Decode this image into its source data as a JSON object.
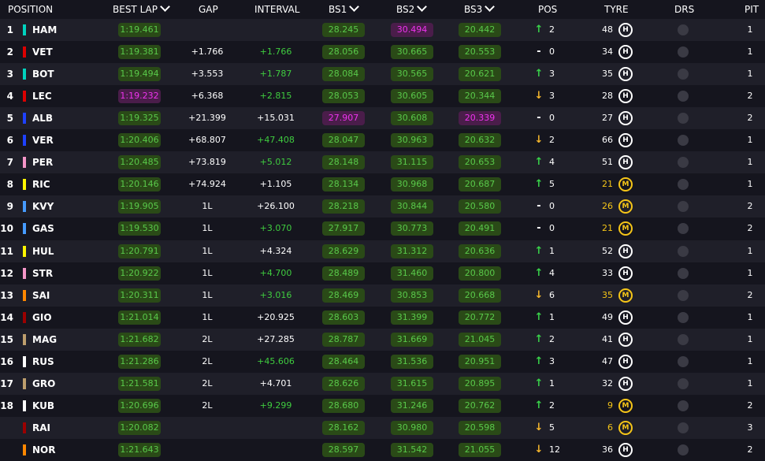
{
  "header": {
    "position": "POSITION",
    "best_lap": "BEST LAP",
    "gap": "GAP",
    "interval": "INTERVAL",
    "bs1": "BS1",
    "bs2": "BS2",
    "bs3": "BS3",
    "pos": "POS",
    "tyre": "TYRE",
    "drs": "DRS",
    "pit": "PIT"
  },
  "rows": [
    {
      "pos": "1",
      "team_color": "#00d2be",
      "driver": "HAM",
      "best_lap": "1:19.461",
      "best_lap_purple": false,
      "gap": "",
      "interval": "",
      "interval_green": false,
      "s1": "28.245",
      "s1_purple": false,
      "s2": "30.494",
      "s2_purple": true,
      "s3": "20.442",
      "s3_purple": false,
      "dir": "up",
      "pos_change": "2",
      "laps": "48",
      "tyre": "H",
      "drs": false,
      "pit": "1"
    },
    {
      "pos": "2",
      "team_color": "#dc0000",
      "driver": "VET",
      "best_lap": "1:19.381",
      "best_lap_purple": false,
      "gap": "+1.766",
      "interval": "+1.766",
      "interval_green": true,
      "s1": "28.056",
      "s1_purple": false,
      "s2": "30.665",
      "s2_purple": false,
      "s3": "20.553",
      "s3_purple": false,
      "dir": "same",
      "pos_change": "0",
      "laps": "34",
      "tyre": "H",
      "drs": false,
      "pit": "1"
    },
    {
      "pos": "3",
      "team_color": "#00d2be",
      "driver": "BOT",
      "best_lap": "1:19.494",
      "best_lap_purple": false,
      "gap": "+3.553",
      "interval": "+1.787",
      "interval_green": true,
      "s1": "28.084",
      "s1_purple": false,
      "s2": "30.565",
      "s2_purple": false,
      "s3": "20.621",
      "s3_purple": false,
      "dir": "up",
      "pos_change": "3",
      "laps": "35",
      "tyre": "H",
      "drs": false,
      "pit": "1"
    },
    {
      "pos": "4",
      "team_color": "#dc0000",
      "driver": "LEC",
      "best_lap": "1:19.232",
      "best_lap_purple": true,
      "gap": "+6.368",
      "interval": "+2.815",
      "interval_green": true,
      "s1": "28.053",
      "s1_purple": false,
      "s2": "30.605",
      "s2_purple": false,
      "s3": "20.344",
      "s3_purple": false,
      "dir": "down",
      "pos_change": "3",
      "laps": "28",
      "tyre": "H",
      "drs": false,
      "pit": "2"
    },
    {
      "pos": "5",
      "team_color": "#1e41ff",
      "driver": "ALB",
      "best_lap": "1:19.325",
      "best_lap_purple": false,
      "gap": "+21.399",
      "interval": "+15.031",
      "interval_green": false,
      "s1": "27.907",
      "s1_purple": true,
      "s2": "30.608",
      "s2_purple": false,
      "s3": "20.339",
      "s3_purple": true,
      "dir": "same",
      "pos_change": "0",
      "laps": "27",
      "tyre": "H",
      "drs": false,
      "pit": "2"
    },
    {
      "pos": "6",
      "team_color": "#1e41ff",
      "driver": "VER",
      "best_lap": "1:20.406",
      "best_lap_purple": false,
      "gap": "+68.807",
      "interval": "+47.408",
      "interval_green": true,
      "s1": "28.047",
      "s1_purple": false,
      "s2": "30.963",
      "s2_purple": false,
      "s3": "20.632",
      "s3_purple": false,
      "dir": "down",
      "pos_change": "2",
      "laps": "66",
      "tyre": "H",
      "drs": false,
      "pit": "1"
    },
    {
      "pos": "7",
      "team_color": "#f596c8",
      "driver": "PER",
      "best_lap": "1:20.485",
      "best_lap_purple": false,
      "gap": "+73.819",
      "interval": "+5.012",
      "interval_green": true,
      "s1": "28.148",
      "s1_purple": false,
      "s2": "31.115",
      "s2_purple": false,
      "s3": "20.653",
      "s3_purple": false,
      "dir": "up",
      "pos_change": "4",
      "laps": "51",
      "tyre": "H",
      "drs": false,
      "pit": "1"
    },
    {
      "pos": "8",
      "team_color": "#fff500",
      "driver": "RIC",
      "best_lap": "1:20.146",
      "best_lap_purple": false,
      "gap": "+74.924",
      "interval": "+1.105",
      "interval_green": false,
      "s1": "28.134",
      "s1_purple": false,
      "s2": "30.968",
      "s2_purple": false,
      "s3": "20.687",
      "s3_purple": false,
      "dir": "up",
      "pos_change": "5",
      "laps": "21",
      "tyre": "M",
      "drs": false,
      "pit": "1"
    },
    {
      "pos": "9",
      "team_color": "#469bff",
      "driver": "KVY",
      "best_lap": "1:19.905",
      "best_lap_purple": false,
      "gap": "1L",
      "interval": "+26.100",
      "interval_green": false,
      "s1": "28.218",
      "s1_purple": false,
      "s2": "30.844",
      "s2_purple": false,
      "s3": "20.580",
      "s3_purple": false,
      "dir": "same",
      "pos_change": "0",
      "laps": "26",
      "tyre": "M",
      "drs": false,
      "pit": "2"
    },
    {
      "pos": "10",
      "team_color": "#469bff",
      "driver": "GAS",
      "best_lap": "1:19.530",
      "best_lap_purple": false,
      "gap": "1L",
      "interval": "+3.070",
      "interval_green": true,
      "s1": "27.917",
      "s1_purple": false,
      "s2": "30.773",
      "s2_purple": false,
      "s3": "20.491",
      "s3_purple": false,
      "dir": "same",
      "pos_change": "0",
      "laps": "21",
      "tyre": "M",
      "drs": false,
      "pit": "2"
    },
    {
      "pos": "11",
      "team_color": "#fff500",
      "driver": "HUL",
      "best_lap": "1:20.791",
      "best_lap_purple": false,
      "gap": "1L",
      "interval": "+4.324",
      "interval_green": false,
      "s1": "28.629",
      "s1_purple": false,
      "s2": "31.312",
      "s2_purple": false,
      "s3": "20.636",
      "s3_purple": false,
      "dir": "up",
      "pos_change": "1",
      "laps": "52",
      "tyre": "H",
      "drs": false,
      "pit": "1"
    },
    {
      "pos": "12",
      "team_color": "#f596c8",
      "driver": "STR",
      "best_lap": "1:20.922",
      "best_lap_purple": false,
      "gap": "1L",
      "interval": "+4.700",
      "interval_green": true,
      "s1": "28.489",
      "s1_purple": false,
      "s2": "31.460",
      "s2_purple": false,
      "s3": "20.800",
      "s3_purple": false,
      "dir": "up",
      "pos_change": "4",
      "laps": "33",
      "tyre": "H",
      "drs": false,
      "pit": "1"
    },
    {
      "pos": "13",
      "team_color": "#ff8700",
      "driver": "SAI",
      "best_lap": "1:20.311",
      "best_lap_purple": false,
      "gap": "1L",
      "interval": "+3.016",
      "interval_green": true,
      "s1": "28.469",
      "s1_purple": false,
      "s2": "30.853",
      "s2_purple": false,
      "s3": "20.668",
      "s3_purple": false,
      "dir": "down",
      "pos_change": "6",
      "laps": "35",
      "tyre": "M",
      "drs": false,
      "pit": "2"
    },
    {
      "pos": "14",
      "team_color": "#9b0000",
      "driver": "GIO",
      "best_lap": "1:21.014",
      "best_lap_purple": false,
      "gap": "1L",
      "interval": "+20.925",
      "interval_green": false,
      "s1": "28.603",
      "s1_purple": false,
      "s2": "31.399",
      "s2_purple": false,
      "s3": "20.772",
      "s3_purple": false,
      "dir": "up",
      "pos_change": "1",
      "laps": "49",
      "tyre": "H",
      "drs": false,
      "pit": "1"
    },
    {
      "pos": "15",
      "team_color": "#bd9e6d",
      "driver": "MAG",
      "best_lap": "1:21.682",
      "best_lap_purple": false,
      "gap": "2L",
      "interval": "+27.285",
      "interval_green": false,
      "s1": "28.787",
      "s1_purple": false,
      "s2": "31.669",
      "s2_purple": false,
      "s3": "21.045",
      "s3_purple": false,
      "dir": "up",
      "pos_change": "2",
      "laps": "41",
      "tyre": "H",
      "drs": false,
      "pit": "1"
    },
    {
      "pos": "16",
      "team_color": "#ffffff",
      "driver": "RUS",
      "best_lap": "1:21.286",
      "best_lap_purple": false,
      "gap": "2L",
      "interval": "+45.606",
      "interval_green": true,
      "s1": "28.464",
      "s1_purple": false,
      "s2": "31.536",
      "s2_purple": false,
      "s3": "20.951",
      "s3_purple": false,
      "dir": "up",
      "pos_change": "3",
      "laps": "47",
      "tyre": "H",
      "drs": false,
      "pit": "1"
    },
    {
      "pos": "17",
      "team_color": "#bd9e6d",
      "driver": "GRO",
      "best_lap": "1:21.581",
      "best_lap_purple": false,
      "gap": "2L",
      "interval": "+4.701",
      "interval_green": false,
      "s1": "28.626",
      "s1_purple": false,
      "s2": "31.615",
      "s2_purple": false,
      "s3": "20.895",
      "s3_purple": false,
      "dir": "up",
      "pos_change": "1",
      "laps": "32",
      "tyre": "H",
      "drs": false,
      "pit": "1"
    },
    {
      "pos": "18",
      "team_color": "#ffffff",
      "driver": "KUB",
      "best_lap": "1:20.696",
      "best_lap_purple": false,
      "gap": "2L",
      "interval": "+9.299",
      "interval_green": true,
      "s1": "28.680",
      "s1_purple": false,
      "s2": "31.246",
      "s2_purple": false,
      "s3": "20.762",
      "s3_purple": false,
      "dir": "up",
      "pos_change": "2",
      "laps": "9",
      "tyre": "M",
      "drs": false,
      "pit": "2"
    },
    {
      "pos": "",
      "team_color": "#9b0000",
      "driver": "RAI",
      "best_lap": "1:20.082",
      "best_lap_purple": false,
      "gap": "",
      "interval": "",
      "interval_green": false,
      "s1": "28.162",
      "s1_purple": false,
      "s2": "30.980",
      "s2_purple": false,
      "s3": "20.598",
      "s3_purple": false,
      "dir": "down",
      "pos_change": "5",
      "laps": "6",
      "tyre": "M",
      "drs": false,
      "pit": "3"
    },
    {
      "pos": "",
      "team_color": "#ff8700",
      "driver": "NOR",
      "best_lap": "1:21.643",
      "best_lap_purple": false,
      "gap": "",
      "interval": "",
      "interval_green": false,
      "s1": "28.597",
      "s1_purple": false,
      "s2": "31.542",
      "s2_purple": false,
      "s3": "21.055",
      "s3_purple": false,
      "dir": "down",
      "pos_change": "12",
      "laps": "36",
      "tyre": "H",
      "drs": false,
      "pit": "2"
    }
  ],
  "colors": {
    "background": "#15151e",
    "row_alt": "#1f1f29",
    "green_sector_bg": "#2a4a17",
    "green_text": "#59c94a",
    "purple": "#ee33ee",
    "medium_tyre": "#f5c518",
    "arrow_up": "#39d34a",
    "arrow_down": "#f5b62c"
  },
  "icons": {
    "up": "arrow-up-icon",
    "down": "arrow-down-icon",
    "same": "dash-icon",
    "sort": "chevron-down-icon"
  }
}
